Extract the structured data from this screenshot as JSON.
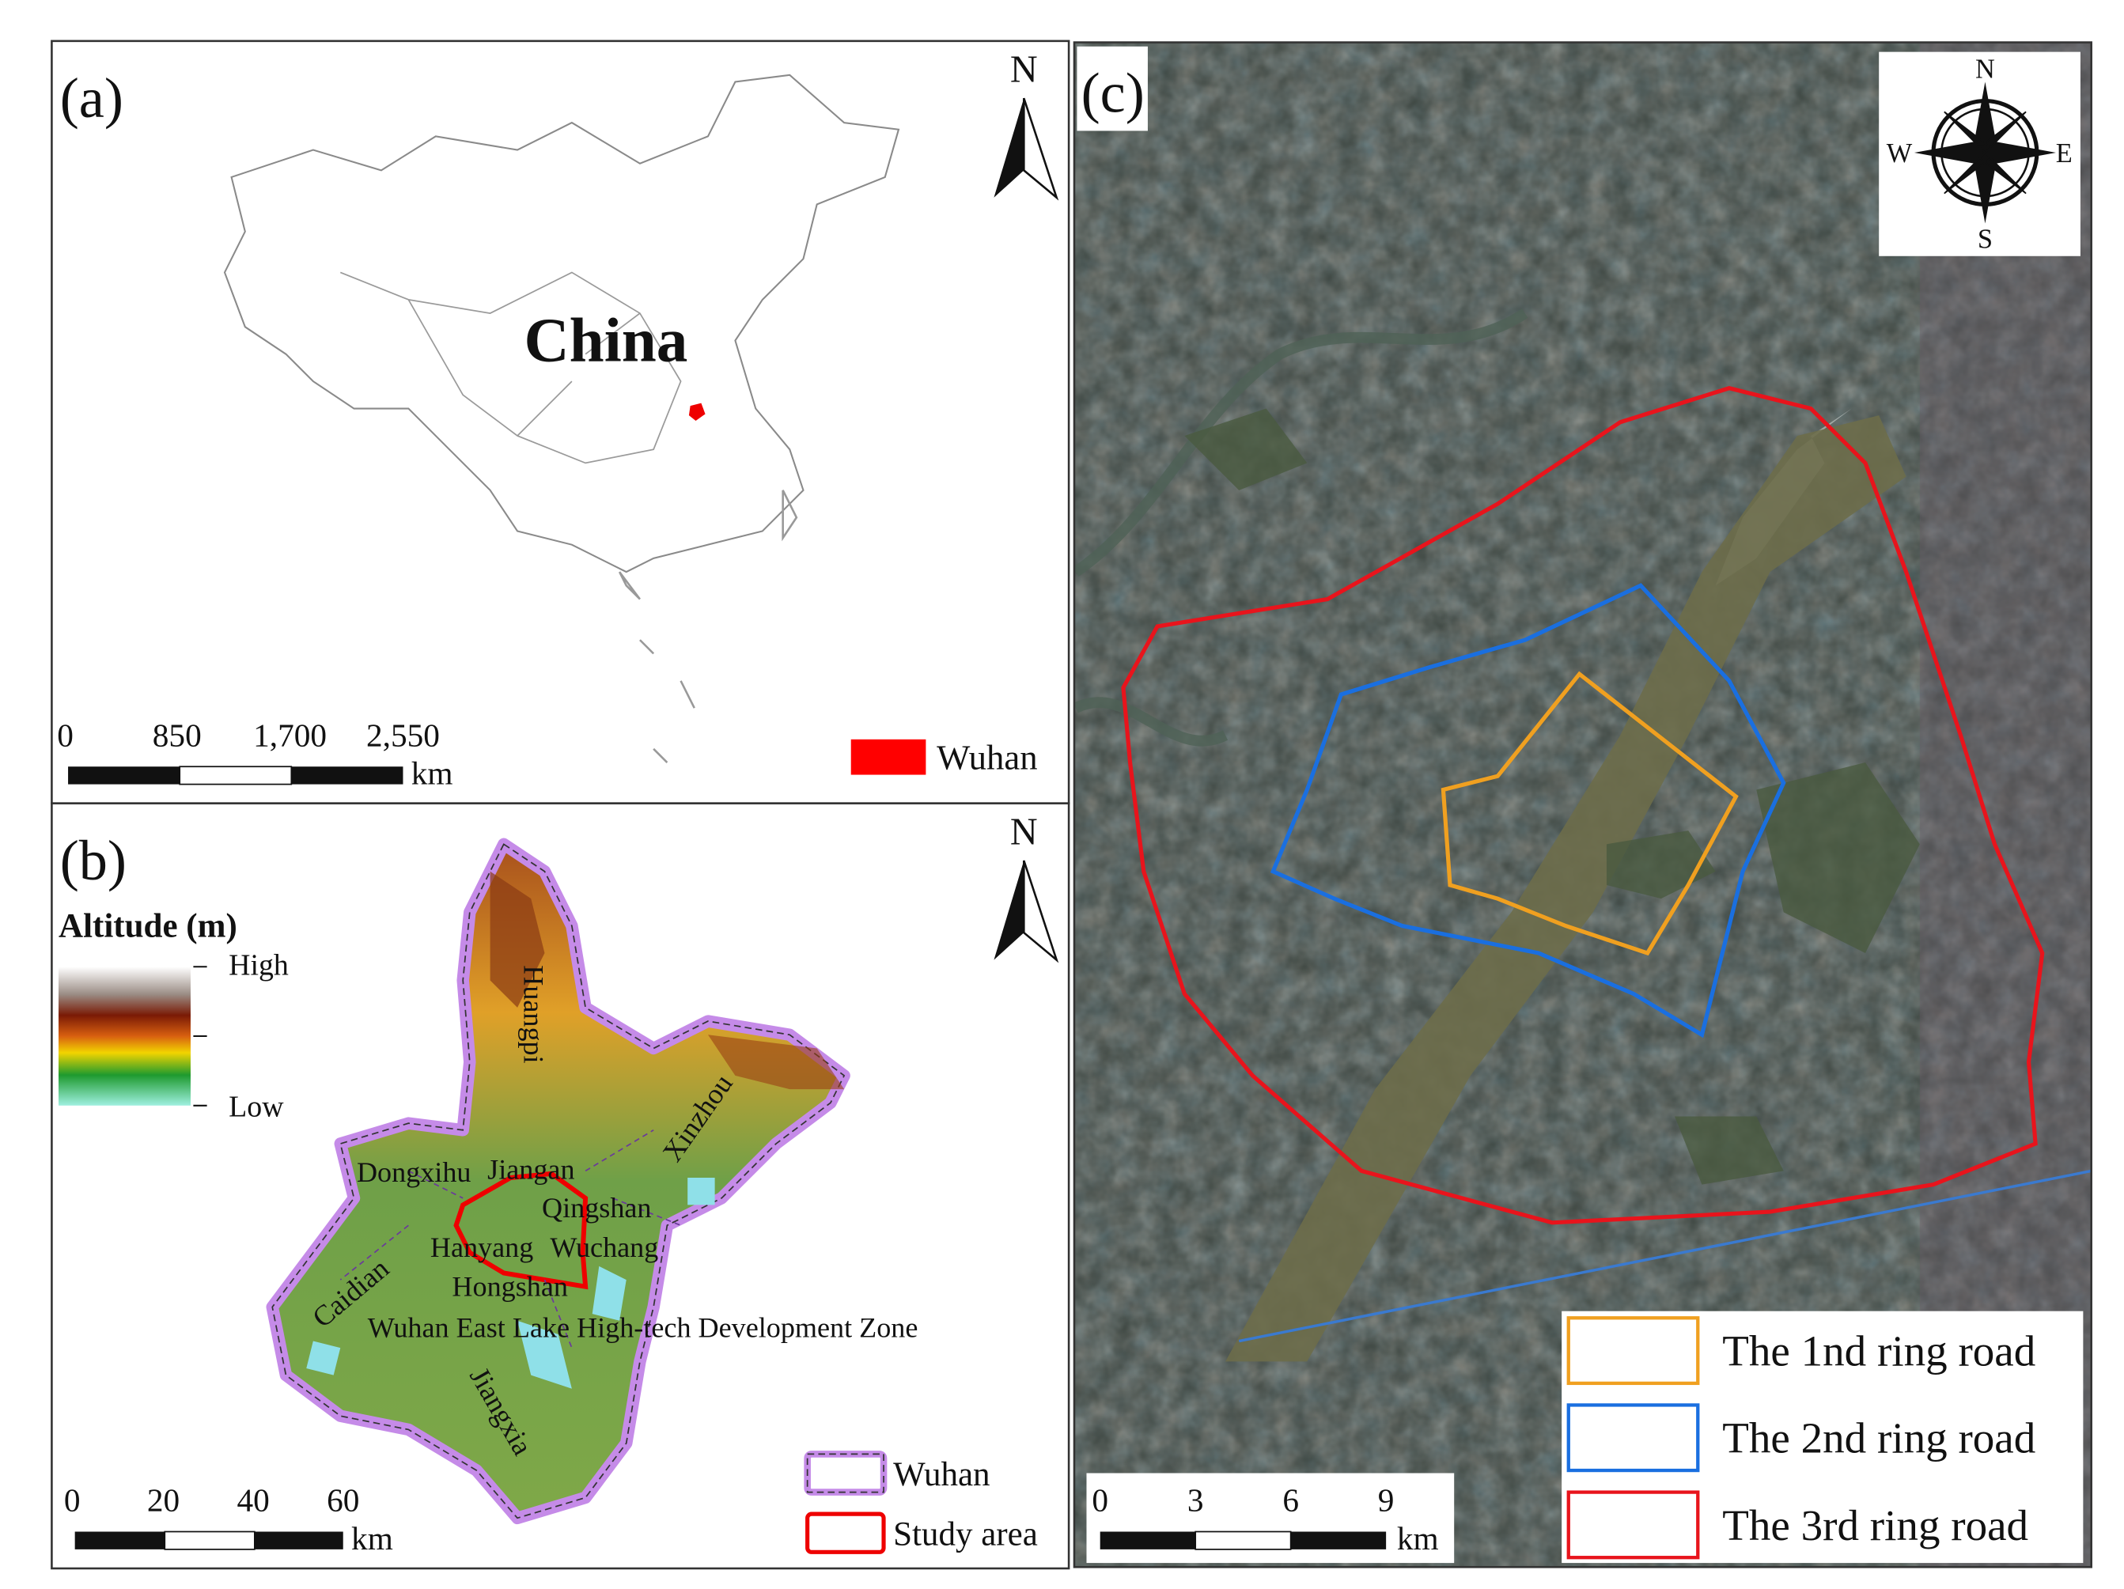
{
  "panel_a": {
    "label": "(a)",
    "north": "N",
    "country": "China",
    "scale_labels": [
      "0",
      "850",
      "1,700",
      "2,550"
    ],
    "scale_unit": "km",
    "legend": "Wuhan"
  },
  "panel_b": {
    "label": "(b)",
    "north": "N",
    "legend_title": "Altitude (m)",
    "high": "High",
    "low": "Low",
    "districts": [
      "Huangpi",
      "Xinzhou",
      "Dongxihu",
      "Jiangan",
      "Qingshan",
      "Hanyang",
      "Wuchang",
      "Caidian",
      "Hongshan",
      "Wuhan East Lake High-tech Development Zone",
      "Jiangxia"
    ],
    "scale_labels": [
      "0",
      "20",
      "40",
      "60"
    ],
    "scale_unit": "km",
    "legend": [
      "Wuhan",
      "Study area"
    ]
  },
  "panel_c": {
    "label": "(c)",
    "compass": {
      "n": "N",
      "s": "S",
      "w": "W",
      "e": "E"
    },
    "scale_labels": [
      "0",
      "3",
      "6",
      "9"
    ],
    "scale_unit": "km",
    "legend": [
      "The 1nd ring road",
      "The 2nd ring road",
      "The 3rd ring road"
    ]
  }
}
